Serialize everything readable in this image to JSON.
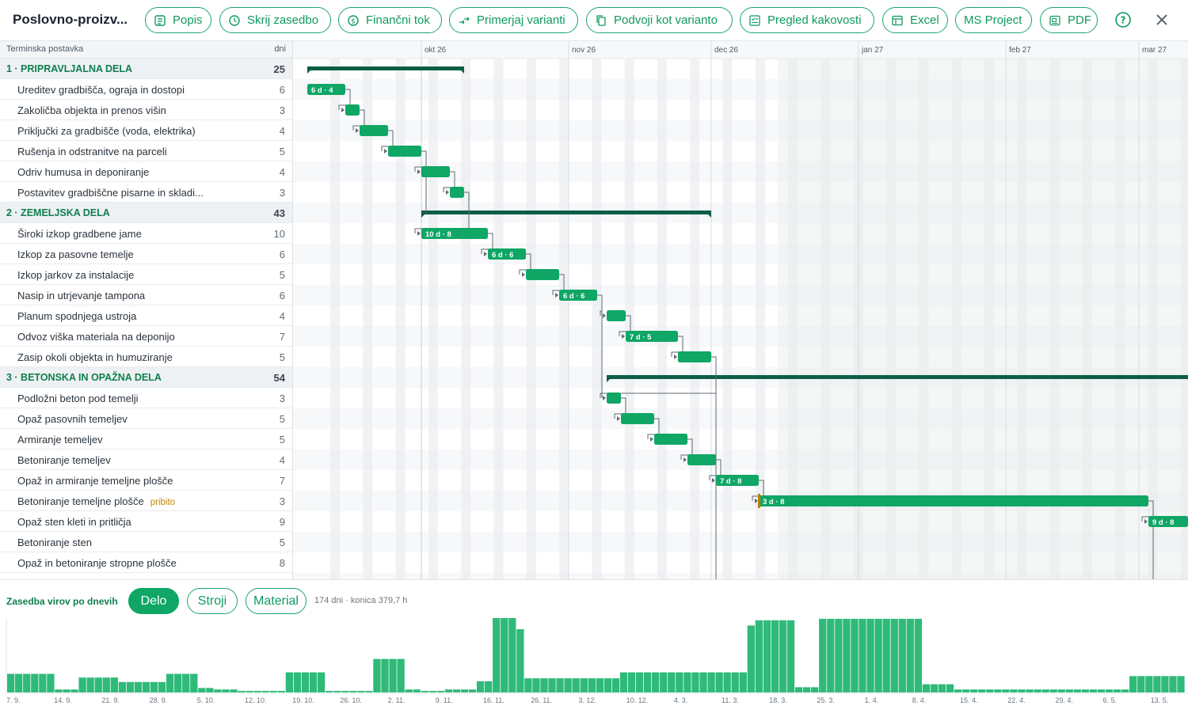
{
  "app": {
    "title": "Poslovno-proizv..."
  },
  "toolbar": {
    "buttons": [
      {
        "label": "Popis",
        "icon": "list-icon"
      },
      {
        "label": "Skrij zasedbo",
        "icon": "clock-icon"
      },
      {
        "label": "Finančni tok",
        "icon": "dollar-icon"
      },
      {
        "label": "Primerjaj varianti",
        "icon": "compare-icon"
      },
      {
        "label": "Podvoji kot varianto",
        "icon": "copy-icon"
      },
      {
        "label": "Pregled kakovosti",
        "icon": "quality-icon"
      },
      {
        "label": "Excel",
        "icon": "table-icon"
      },
      {
        "label": "MS Project",
        "icon": ""
      },
      {
        "label": "PDF",
        "icon": "pdf-icon"
      }
    ],
    "help_icon": "help-icon",
    "close_icon": "close-icon"
  },
  "list": {
    "header_name": "Terminska postavka",
    "header_days": "dni",
    "rows": [
      {
        "type": "group",
        "label": "1 · PRIPRAVLJALNA DELA",
        "days": "25"
      },
      {
        "type": "task",
        "label": "Ureditev gradbišča, ograja in dostopi",
        "days": "6"
      },
      {
        "type": "task",
        "label": "Zakoličba objekta in prenos višin",
        "days": "3"
      },
      {
        "type": "task",
        "label": "Priključki za gradbišče (voda, elektrika)",
        "days": "4"
      },
      {
        "type": "task",
        "label": "Rušenja in odstranitve na parceli",
        "days": "5"
      },
      {
        "type": "task",
        "label": "Odriv humusa in deponiranje",
        "days": "4"
      },
      {
        "type": "task",
        "label": "Postavitev gradbiščne pisarne in skladi...",
        "days": "3"
      },
      {
        "type": "group",
        "label": "2 · ZEMELJSKA DELA",
        "days": "43"
      },
      {
        "type": "task",
        "label": "Široki izkop gradbene jame",
        "days": "10"
      },
      {
        "type": "task",
        "label": "Izkop za pasovne temelje",
        "days": "6"
      },
      {
        "type": "task",
        "label": "Izkop jarkov za instalacije",
        "days": "5"
      },
      {
        "type": "task",
        "label": "Nasip in utrjevanje tampona",
        "days": "6"
      },
      {
        "type": "task",
        "label": "Planum spodnjega ustroja",
        "days": "4"
      },
      {
        "type": "task",
        "label": "Odvoz viška materiala na deponijo",
        "days": "7"
      },
      {
        "type": "task",
        "label": "Zasip okoli objekta in humuziranje",
        "days": "5"
      },
      {
        "type": "group",
        "label": "3 · BETONSKA IN OPAŽNA DELA",
        "days": "54"
      },
      {
        "type": "task",
        "label": "Podložni beton pod temelji",
        "days": "3"
      },
      {
        "type": "task",
        "label": "Opaž pasovnih temeljev",
        "days": "5"
      },
      {
        "type": "task",
        "label": "Armiranje temeljev",
        "days": "5"
      },
      {
        "type": "task",
        "label": "Betoniranje temeljev",
        "days": "4"
      },
      {
        "type": "task",
        "label": "Opaž in armiranje temeljne plošče",
        "days": "7"
      },
      {
        "type": "task",
        "label": "Betoniranje temeljne plošče",
        "days": "3",
        "tag": "pribito"
      },
      {
        "type": "task",
        "label": "Opaž sten kleti in pritličja",
        "days": "9"
      },
      {
        "type": "task",
        "label": "Betoniranje sten",
        "days": "5"
      },
      {
        "type": "task",
        "label": "Opaž in betoniranje stropne plošče",
        "days": "8"
      }
    ]
  },
  "gantt": {
    "months": [
      "okt 26",
      "nov 26",
      "dec 26",
      "jan 27",
      "feb 27",
      "mar 27"
    ],
    "bar_labels": [
      "6 d · 4",
      "10 d · 8",
      "6 d · 6",
      "6 d · 6",
      "7 d · 5",
      "7 d · 8",
      "3 d · 8",
      "9 d · 8"
    ],
    "colors": {
      "task": "#0fa666",
      "summary": "#0e5e46",
      "pinned": "#c77c00"
    }
  },
  "resources": {
    "title": "Zasedba virov po dnevih",
    "tabs": [
      {
        "label": "Delo",
        "active": true
      },
      {
        "label": "Stroji",
        "active": false
      },
      {
        "label": "Material",
        "active": false
      }
    ],
    "summary": "174 dni · konica 379,7 h",
    "date_labels": [
      "7. 9.",
      "14. 9.",
      "21. 9.",
      "28. 9.",
      "5. 10.",
      "12. 10.",
      "19. 10.",
      "26. 10.",
      "2. 11.",
      "9. 11.",
      "16. 11.",
      "26. 11.",
      "3. 12.",
      "10. 12.",
      "4. 3.",
      "11. 3.",
      "18. 3.",
      "25. 3.",
      "1. 4.",
      "8. 4.",
      "15. 4.",
      "22. 4.",
      "29. 4.",
      "6. 5.",
      "13. 5."
    ],
    "bar_heights_fraction": [
      0.25,
      0.25,
      0.25,
      0.25,
      0.25,
      0.25,
      0.04,
      0.04,
      0.04,
      0.2,
      0.2,
      0.2,
      0.2,
      0.2,
      0.14,
      0.14,
      0.14,
      0.14,
      0.14,
      0.14,
      0.25,
      0.25,
      0.25,
      0.25,
      0.06,
      0.06,
      0.04,
      0.04,
      0.04,
      0.02,
      0.02,
      0.02,
      0.02,
      0.02,
      0.02,
      0.27,
      0.27,
      0.27,
      0.27,
      0.27,
      0.02,
      0.02,
      0.02,
      0.02,
      0.02,
      0.02,
      0.45,
      0.45,
      0.45,
      0.45,
      0.04,
      0.04,
      0.02,
      0.02,
      0.02,
      0.04,
      0.04,
      0.04,
      0.04,
      0.15,
      0.15,
      1.0,
      1.0,
      1.0,
      0.85,
      0.19,
      0.19,
      0.19,
      0.19,
      0.19,
      0.19,
      0.19,
      0.19,
      0.19,
      0.19,
      0.19,
      0.19,
      0.27,
      0.27,
      0.27,
      0.27,
      0.27,
      0.27,
      0.27,
      0.27,
      0.27,
      0.27,
      0.27,
      0.27,
      0.27,
      0.27,
      0.27,
      0.27,
      0.9,
      0.97,
      0.97,
      0.97,
      0.97,
      0.97,
      0.07,
      0.07,
      0.07,
      0.99,
      0.99,
      0.99,
      0.99,
      0.99,
      0.99,
      0.99,
      0.99,
      0.99,
      0.99,
      0.99,
      0.99,
      0.99,
      0.11,
      0.11,
      0.11,
      0.11,
      0.04,
      0.04,
      0.04,
      0.04,
      0.04,
      0.04,
      0.04,
      0.04,
      0.04,
      0.04,
      0.04,
      0.04,
      0.04,
      0.04,
      0.04,
      0.04,
      0.04,
      0.04,
      0.04,
      0.04,
      0.04,
      0.04,
      0.22,
      0.22,
      0.22,
      0.22,
      0.22,
      0.22,
      0.22,
      0.22,
      0.2,
      0.11,
      0.11,
      0.11,
      0.37,
      0.63,
      0.63,
      0.63
    ],
    "bar_color": "#2fba7a"
  }
}
